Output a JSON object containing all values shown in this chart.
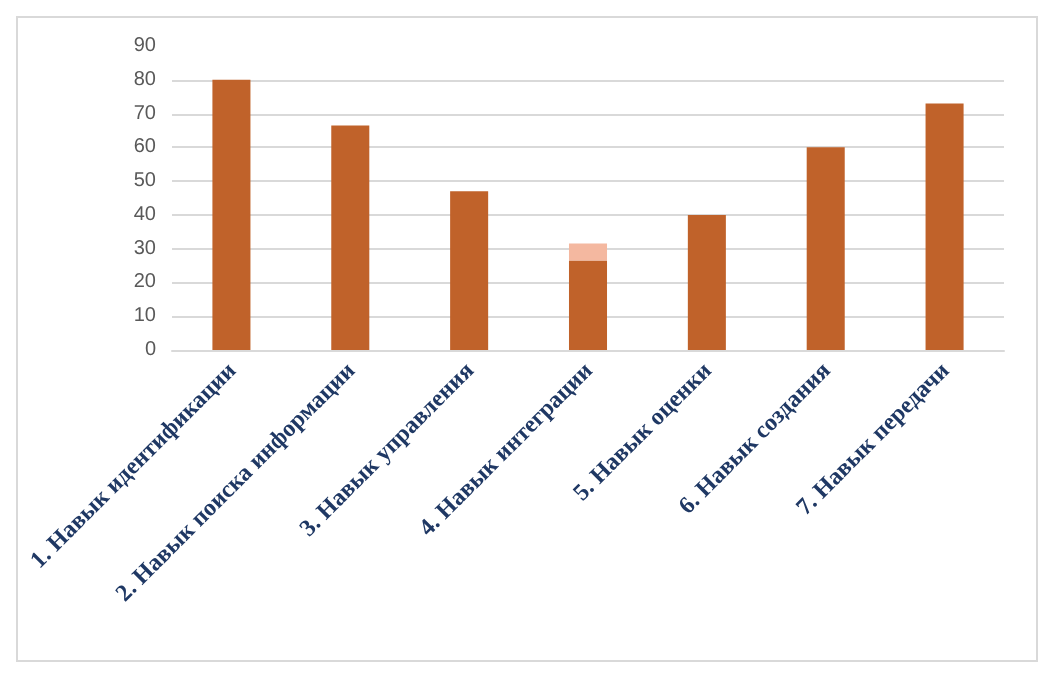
{
  "chart_data": {
    "type": "bar",
    "stacked": true,
    "categories": [
      "1. Навык идентификации",
      "2. Навык поиска информации",
      "3. Навык управления",
      "4. Навык интеграции",
      "5. Навык оценки",
      "6. Навык создания",
      "7. Навык передачи"
    ],
    "series": [
      {
        "color": "#c0622a",
        "values": [
          80,
          66.5,
          47,
          26.5,
          40,
          60,
          73
        ]
      },
      {
        "color": "#f4b8a0",
        "values": [
          null,
          null,
          null,
          5,
          null,
          null,
          null
        ]
      }
    ],
    "ylim": [
      0,
      90
    ],
    "yticks": [
      0,
      10,
      20,
      30,
      40,
      50,
      60,
      70,
      80,
      90
    ],
    "grid": "y"
  }
}
